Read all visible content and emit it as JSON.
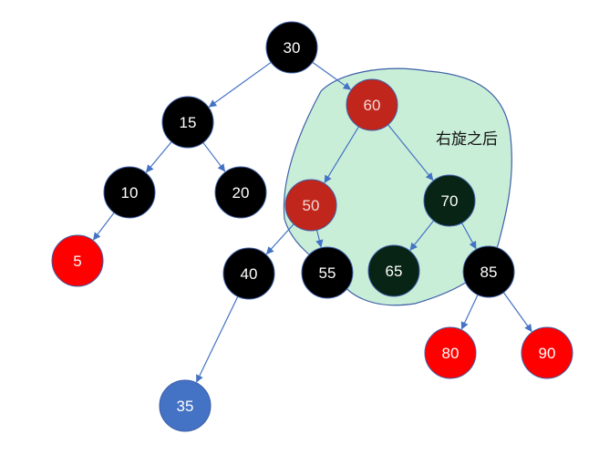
{
  "annotation": {
    "text": "右旋之后"
  },
  "colors": {
    "black": "#000000",
    "red": "#ff0000",
    "dark_red": "#c0261c",
    "dark_green": "#072414",
    "blue": "#4472c4",
    "region_fill": "#c9eed8",
    "region_stroke": "#3d5fa8",
    "edge": "#4472c4"
  },
  "nodes": [
    {
      "id": "n30",
      "label": "30",
      "color": "black"
    },
    {
      "id": "n15",
      "label": "15",
      "color": "black"
    },
    {
      "id": "n60",
      "label": "60",
      "color": "dark_red"
    },
    {
      "id": "n10",
      "label": "10",
      "color": "black"
    },
    {
      "id": "n20",
      "label": "20",
      "color": "black"
    },
    {
      "id": "n50",
      "label": "50",
      "color": "dark_red"
    },
    {
      "id": "n70",
      "label": "70",
      "color": "dark_green"
    },
    {
      "id": "n5",
      "label": "5",
      "color": "red"
    },
    {
      "id": "n40",
      "label": "40",
      "color": "black"
    },
    {
      "id": "n55",
      "label": "55",
      "color": "black"
    },
    {
      "id": "n65",
      "label": "65",
      "color": "dark_green"
    },
    {
      "id": "n85",
      "label": "85",
      "color": "black"
    },
    {
      "id": "n80",
      "label": "80",
      "color": "red"
    },
    {
      "id": "n90",
      "label": "90",
      "color": "red"
    },
    {
      "id": "n35",
      "label": "35",
      "color": "blue"
    }
  ],
  "edges": [
    {
      "from": "n30",
      "to": "n15"
    },
    {
      "from": "n30",
      "to": "n60"
    },
    {
      "from": "n15",
      "to": "n10"
    },
    {
      "from": "n15",
      "to": "n20"
    },
    {
      "from": "n10",
      "to": "n5"
    },
    {
      "from": "n60",
      "to": "n50"
    },
    {
      "from": "n60",
      "to": "n70"
    },
    {
      "from": "n50",
      "to": "n40"
    },
    {
      "from": "n50",
      "to": "n55"
    },
    {
      "from": "n70",
      "to": "n65"
    },
    {
      "from": "n70",
      "to": "n85"
    },
    {
      "from": "n40",
      "to": "n35"
    },
    {
      "from": "n85",
      "to": "n80"
    },
    {
      "from": "n85",
      "to": "n90"
    }
  ]
}
